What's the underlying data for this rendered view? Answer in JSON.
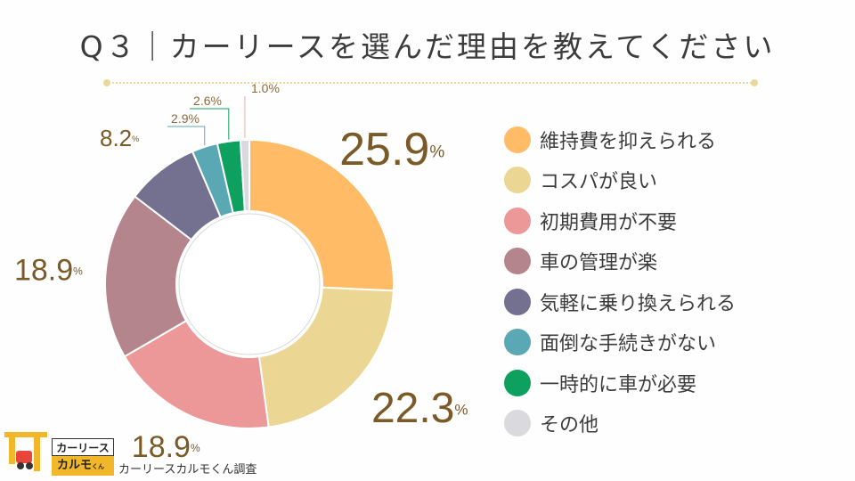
{
  "title": "Q３｜カーリースを選んだ理由を教えてください",
  "chart_data": {
    "type": "pie",
    "donut": true,
    "legend_position": "right",
    "categories": [
      "維持費を抑えられる",
      "コスパが良い",
      "初期費用が不要",
      "車の管理が楽",
      "気軽に乗り換えられる",
      "面倒な手続きがない",
      "一時的に車が必要",
      "その他"
    ],
    "values": [
      25.9,
      22.3,
      18.9,
      18.9,
      8.2,
      2.9,
      2.6,
      1.0
    ],
    "value_labels": [
      "25.9",
      "22.3",
      "18.9",
      "18.9",
      "8.2",
      "2.9",
      "2.6",
      "1.0"
    ],
    "unit": "%",
    "colors": [
      "#ffbb66",
      "#ecd694",
      "#ec9898",
      "#b5858d",
      "#737090",
      "#5ba8b5",
      "#0ea05e",
      "#d9d9de"
    ]
  },
  "logo": {
    "top_text": "カーリース",
    "bottom_text": "カルモ",
    "bottom_small": "くん"
  },
  "credit": "カーリースカルモくん調査"
}
